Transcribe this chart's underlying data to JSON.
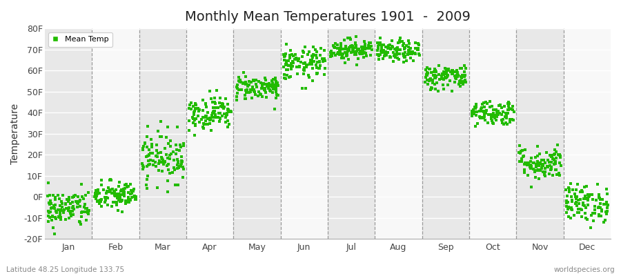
{
  "title": "Monthly Mean Temperatures 1901  -  2009",
  "ylabel": "Temperature",
  "xlabel": "",
  "footer_left": "Latitude 48.25 Longitude 133.75",
  "footer_right": "worldspecies.org",
  "legend_label": "Mean Temp",
  "ylim": [
    -20,
    80
  ],
  "yticks": [
    -20,
    -10,
    0,
    10,
    20,
    30,
    40,
    50,
    60,
    70,
    80
  ],
  "ytick_labels": [
    "-20F",
    "-10F",
    "0F",
    "10F",
    "20F",
    "30F",
    "40F",
    "50F",
    "60F",
    "70F",
    "80F"
  ],
  "months": [
    "Jan",
    "Feb",
    "Mar",
    "Apr",
    "May",
    "Jun",
    "Jul",
    "Aug",
    "Sep",
    "Oct",
    "Nov",
    "Dec"
  ],
  "marker_color": "#22bb00",
  "bg_color": "#ffffff",
  "band_color_odd": "#e8e8e8",
  "band_color_even": "#f8f8f8",
  "monthly_means": [
    -5.5,
    0.5,
    19,
    40,
    52,
    63,
    70,
    69,
    57,
    40,
    16,
    -3
  ],
  "monthly_stds": [
    4.5,
    3.5,
    6,
    4,
    3,
    4,
    2.5,
    2.5,
    3,
    3,
    4,
    4.5
  ],
  "n_years": 109
}
